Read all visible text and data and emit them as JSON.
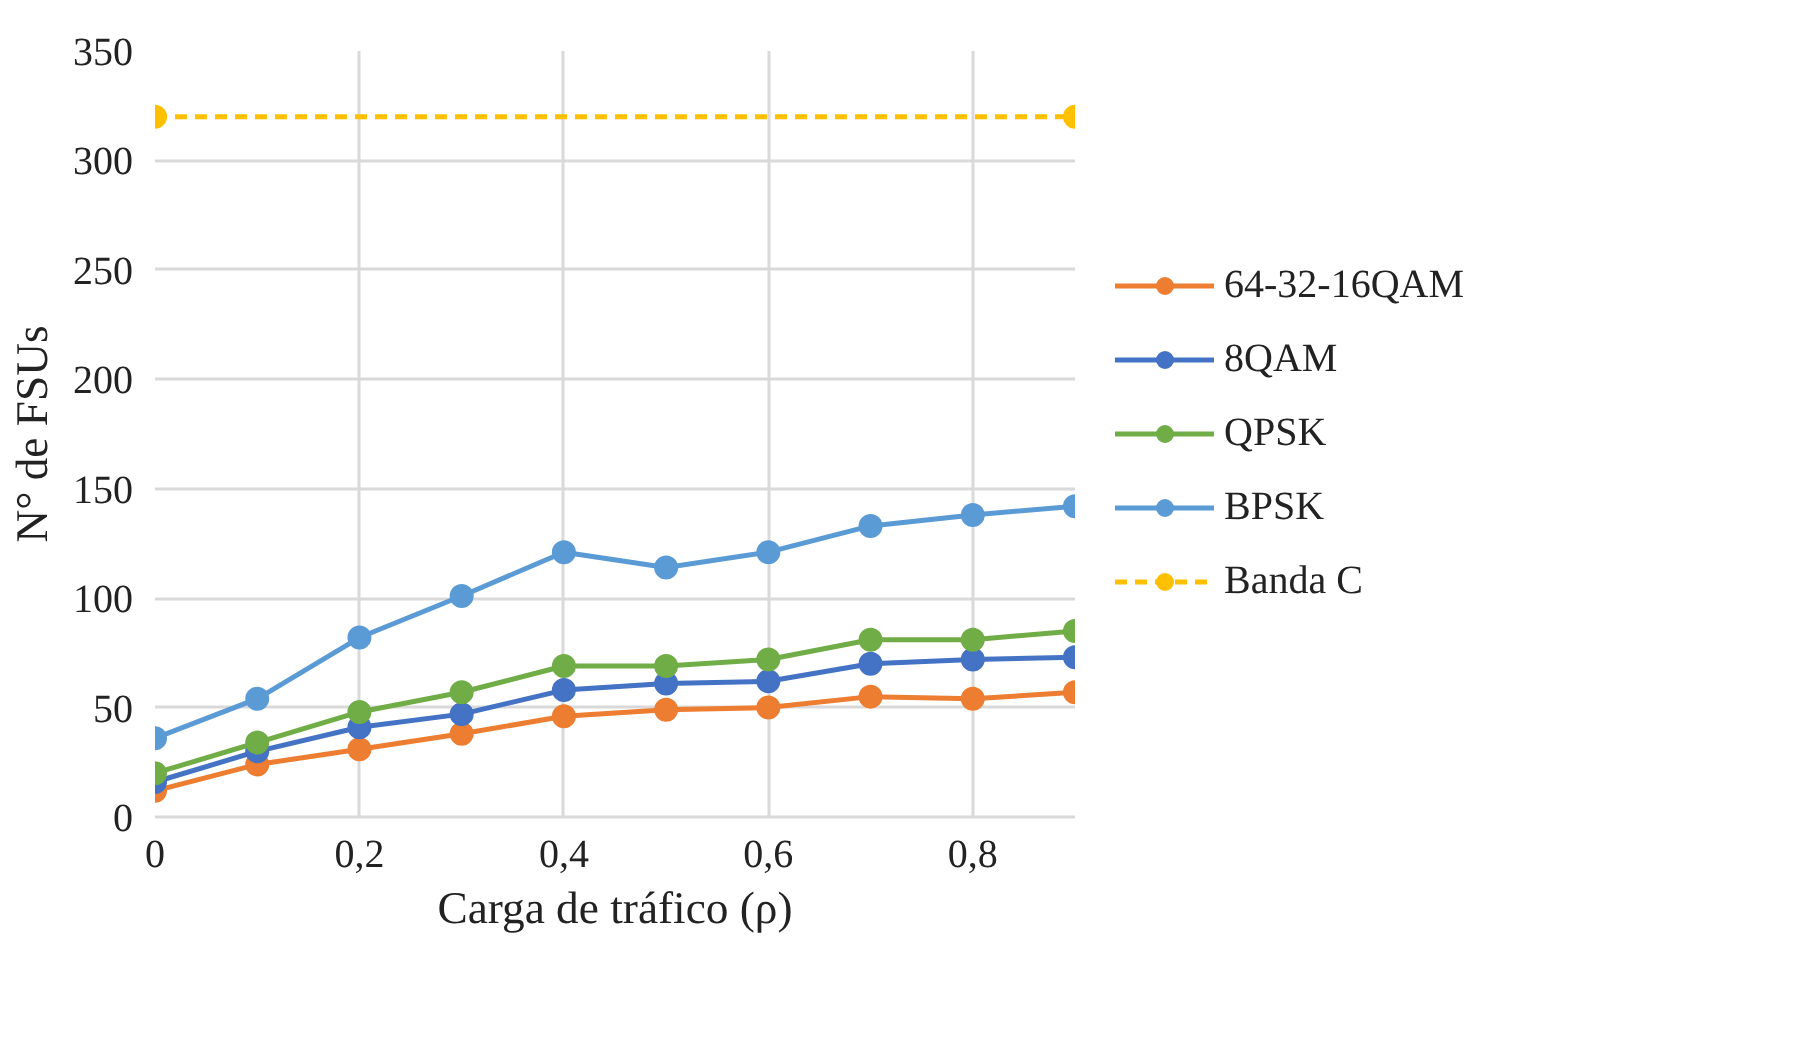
{
  "chart_data": {
    "type": "line",
    "xlabel": "Carga de tráfico (ρ)",
    "ylabel": "N° de FSUs",
    "x": [
      0,
      0.1,
      0.2,
      0.3,
      0.4,
      0.5,
      0.6,
      0.7,
      0.8,
      0.9
    ],
    "series": [
      {
        "name": "64-32-16QAM",
        "color": "#ed7d31",
        "values": [
          12,
          24,
          31,
          38,
          46,
          49,
          50,
          55,
          54,
          57
        ]
      },
      {
        "name": "8QAM",
        "color": "#4472c4",
        "values": [
          16,
          30,
          41,
          47,
          58,
          61,
          62,
          70,
          72,
          73
        ]
      },
      {
        "name": "QPSK",
        "color": "#70ad47",
        "values": [
          20,
          34,
          48,
          57,
          69,
          69,
          72,
          81,
          81,
          85
        ]
      },
      {
        "name": "BPSK",
        "color": "#5b9bd5",
        "values": [
          36,
          54,
          82,
          101,
          121,
          114,
          121,
          133,
          138,
          142
        ]
      },
      {
        "name": "Banda C",
        "color": "#ffc000",
        "line_style": "dashed",
        "x": [
          0,
          0.9
        ],
        "values": [
          320,
          320
        ]
      }
    ],
    "xlim": [
      0,
      0.9
    ],
    "xticks": [
      0,
      {
        "value": 0.2,
        "label": "0,2"
      },
      {
        "value": 0.4,
        "label": "0,4"
      },
      {
        "value": 0.6,
        "label": "0,6"
      },
      {
        "value": 0.8,
        "label": "0,8"
      }
    ],
    "ylim": [
      0,
      350
    ],
    "yticks": [
      0,
      50,
      100,
      150,
      200,
      250,
      300,
      350
    ],
    "grid": true,
    "legend": "right",
    "marker": "circle",
    "line_style": "solid"
  }
}
